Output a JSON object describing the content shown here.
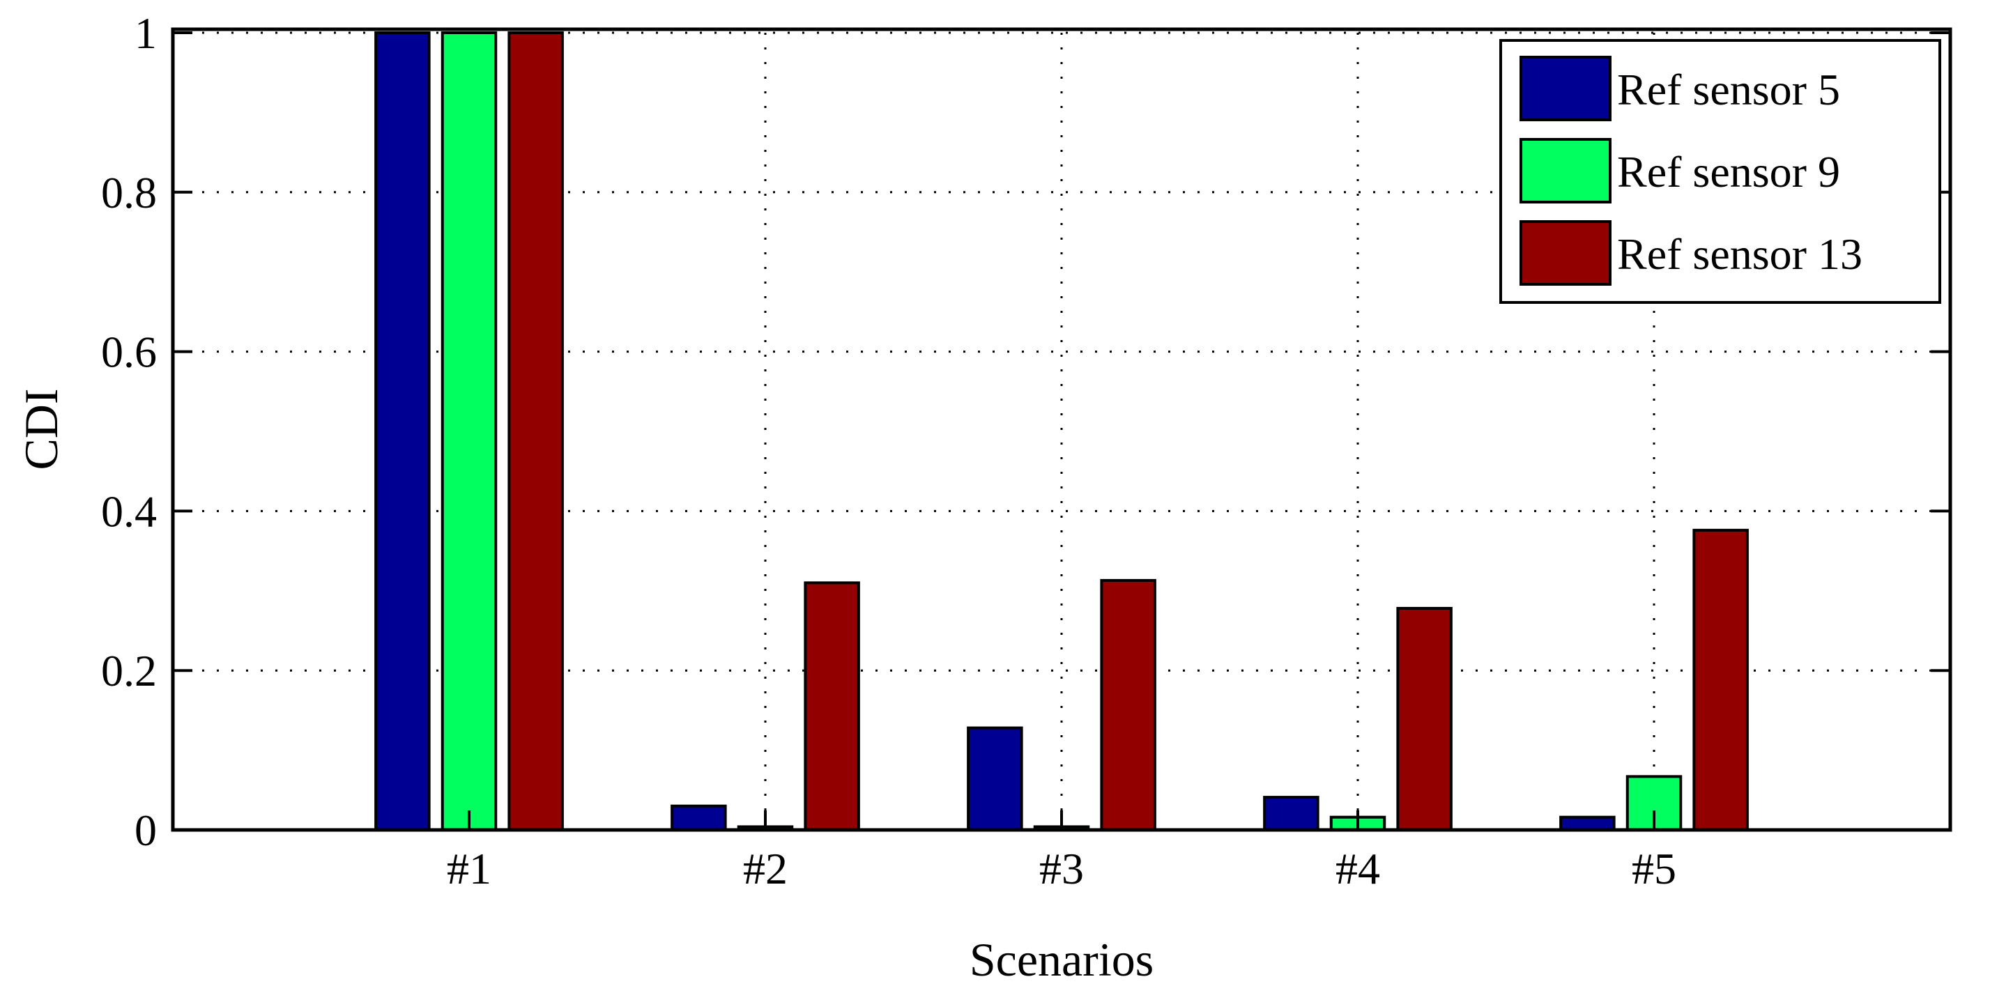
{
  "chart_data": {
    "type": "bar",
    "title": "",
    "xlabel": "Scenarios",
    "ylabel": "CDI",
    "categories": [
      "#1",
      "#2",
      "#3",
      "#4",
      "#5"
    ],
    "ylim": [
      0,
      1
    ],
    "xlim": [
      0,
      6
    ],
    "yticks": [
      "0",
      "0.2",
      "0.4",
      "0.6",
      "0.8",
      "1"
    ],
    "grid": true,
    "legend_position": "top-right",
    "series": [
      {
        "name": "Ref sensor 5",
        "color": "#000093",
        "values": [
          1.0,
          0.03,
          0.128,
          0.041,
          0.016
        ]
      },
      {
        "name": "Ref sensor 9",
        "color": "#00ff5f",
        "values": [
          1.0,
          0.004,
          0.004,
          0.016,
          0.067
        ]
      },
      {
        "name": "Ref sensor 13",
        "color": "#930000",
        "values": [
          1.0,
          0.31,
          0.313,
          0.278,
          0.376
        ]
      }
    ]
  }
}
